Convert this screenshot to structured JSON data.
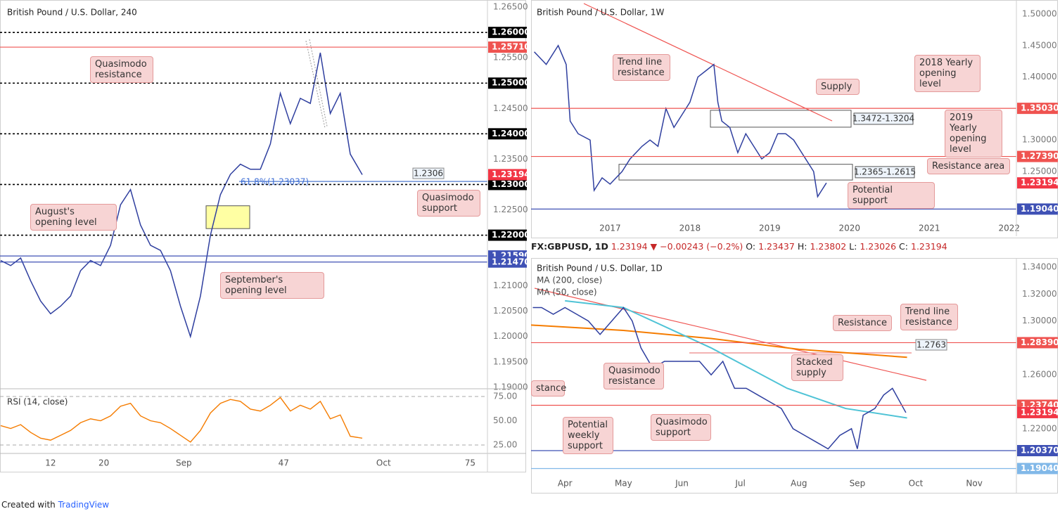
{
  "chart_data": [
    {
      "type": "line",
      "title": "British Pound / U.S. Dollar, 240",
      "color": "#2f3f9f",
      "x": [
        4.5,
        6,
        7.5,
        9,
        10.5,
        12,
        13.5,
        15,
        16.5,
        18,
        19.5,
        21,
        22.5,
        24,
        25.5,
        27,
        28.5,
        30,
        31.5,
        33,
        34.5,
        36,
        37.5,
        39,
        40.5,
        42,
        43.5,
        45,
        46.5,
        48,
        49.5,
        51,
        52.5,
        54,
        55.5,
        57,
        58.8
      ],
      "values": [
        1.215,
        1.214,
        1.2155,
        1.211,
        1.207,
        1.2045,
        1.206,
        1.208,
        1.213,
        1.215,
        1.214,
        1.218,
        1.226,
        1.229,
        1.222,
        1.218,
        1.217,
        1.213,
        1.206,
        1.2,
        1.208,
        1.22,
        1.228,
        1.232,
        1.234,
        1.233,
        1.233,
        1.238,
        1.248,
        1.242,
        1.247,
        1.246,
        1.256,
        1.244,
        1.248,
        1.236,
        1.23194
      ],
      "xlim": [
        4.4,
        77.6
      ],
      "xticks": [
        12,
        20,
        {
          "value": 32,
          "label": "Sep"
        },
        47,
        {
          "value": 62,
          "label": "Oct"
        },
        75
      ],
      "ylim": [
        1.1897,
        1.2664
      ],
      "yticks": [
        {
          "value": 1.265,
          "label": "1.26500"
        },
        {
          "value": 1.255,
          "label": "1.25500"
        },
        {
          "value": 1.245,
          "label": "1.24500"
        },
        {
          "value": 1.235,
          "label": "1.23500"
        },
        {
          "value": 1.225,
          "label": "1.22500"
        },
        {
          "value": 1.21,
          "label": "1.21000"
        },
        {
          "value": 1.205,
          "label": "1.20500"
        },
        {
          "value": 1.2,
          "label": "1.20000"
        },
        {
          "value": 1.195,
          "label": "1.19500"
        },
        {
          "value": 1.19,
          "label": "1.19000"
        }
      ],
      "levels": [
        {
          "value": 1.26,
          "label": "1.26000",
          "color": "#000000",
          "style": "dotted"
        },
        {
          "value": 1.2571,
          "label": "1.25710",
          "color": "#ef5350",
          "style": "solid"
        },
        {
          "value": 1.25,
          "label": "1.25000",
          "color": "#000000",
          "style": "dotted"
        },
        {
          "value": 1.24,
          "label": "1.24000",
          "color": "#000000",
          "style": "dotted"
        },
        {
          "value": 1.23,
          "label": "1.23000",
          "color": "#000000",
          "style": "dotted"
        },
        {
          "value": 1.22,
          "label": "1.22000",
          "color": "#000000",
          "style": "dotted"
        },
        {
          "value": 1.2159,
          "label": "1.21590",
          "color": "#3f51b5",
          "style": "solid"
        },
        {
          "value": 1.2147,
          "label": "1.21470",
          "color": "#3f51b5",
          "style": "solid"
        }
      ],
      "last_price": {
        "value": 1.23194,
        "label": "1.23194",
        "color": "#f23645"
      },
      "marker_levels": [
        {
          "value": 1.2306,
          "label": "1.2306",
          "color": "#6b8fd6"
        }
      ],
      "zones": [
        {
          "from": 1.2213,
          "to": 1.2258,
          "color": "#ffff99"
        }
      ],
      "fib_label": "61.8%(1.23037)",
      "annotations": [
        "Quasimodo resistance",
        "August's opening level",
        "September's opening level",
        "Quasimodo support"
      ],
      "rsi": {
        "title": "RSI (14, close)",
        "color": "#f57c00",
        "ylim": [
          16.3,
          83
        ],
        "yticks": [
          {
            "value": 75,
            "label": "75.00"
          },
          {
            "value": 50,
            "label": "50.00"
          },
          {
            "value": 25,
            "label": "25.00"
          }
        ],
        "values": [
          45,
          42,
          46,
          38,
          32,
          30,
          35,
          40,
          48,
          52,
          50,
          55,
          65,
          68,
          55,
          50,
          48,
          42,
          35,
          28,
          40,
          58,
          68,
          72,
          70,
          62,
          60,
          66,
          74,
          60,
          66,
          62,
          70,
          52,
          56,
          34,
          32
        ]
      }
    },
    {
      "type": "line",
      "title": "British Pound / U.S. Dollar, 1W",
      "color": "#2f3f9f",
      "x": [
        2016.05,
        2016.2,
        2016.35,
        2016.45,
        2016.5,
        2016.6,
        2016.75,
        2016.8,
        2016.9,
        2017.0,
        2017.15,
        2017.25,
        2017.4,
        2017.5,
        2017.6,
        2017.7,
        2017.8,
        2017.9,
        2018.0,
        2018.1,
        2018.2,
        2018.3,
        2018.35,
        2018.4,
        2018.5,
        2018.6,
        2018.7,
        2018.8,
        2018.9,
        2019.0,
        2019.1,
        2019.2,
        2019.3,
        2019.4,
        2019.5,
        2019.55,
        2019.6,
        2019.65,
        2019.71
      ],
      "values": [
        1.44,
        1.42,
        1.45,
        1.42,
        1.33,
        1.31,
        1.3,
        1.22,
        1.24,
        1.23,
        1.25,
        1.27,
        1.29,
        1.3,
        1.29,
        1.35,
        1.32,
        1.34,
        1.36,
        1.4,
        1.41,
        1.42,
        1.36,
        1.33,
        1.32,
        1.28,
        1.31,
        1.29,
        1.27,
        1.28,
        1.31,
        1.31,
        1.3,
        1.28,
        1.26,
        1.25,
        1.21,
        1.22,
        1.23194
      ],
      "xlim": [
        2016.01,
        2022.09
      ],
      "xticks": [
        2017,
        2018,
        2019,
        2020,
        2021,
        2022
      ],
      "ylim": [
        1.1741,
        1.5223
      ],
      "yticks": [
        {
          "value": 1.5,
          "label": "1.50000"
        },
        {
          "value": 1.45,
          "label": "1.45000"
        },
        {
          "value": 1.4,
          "label": "1.40000"
        },
        {
          "value": 1.3,
          "label": "1.30000"
        },
        {
          "value": 1.25,
          "label": "1.25000"
        }
      ],
      "levels": [
        {
          "value": 1.3503,
          "label": "1.35030",
          "color": "#ef5350",
          "style": "solid"
        },
        {
          "value": 1.2739,
          "label": "1.27390",
          "color": "#ef5350",
          "style": "solid"
        },
        {
          "value": 1.1904,
          "label": "1.19040",
          "color": "#3f51b5",
          "style": "solid"
        }
      ],
      "last_price": {
        "value": 1.23194,
        "label": "1.23194",
        "color": "#f23645"
      },
      "zones": [
        {
          "label": "1.3472-1.3204",
          "from": 1.3204,
          "to": 1.3472,
          "color": "#ffffff"
        },
        {
          "label": "1.2365-1.2615",
          "from": 1.2365,
          "to": 1.2615,
          "color": "#ffffff"
        }
      ],
      "annotations": [
        "Trend line resistance",
        "Supply",
        "2018 Yearly opening level",
        "2019 Yearly opening level",
        "Resistance area",
        "Potential support"
      ]
    },
    {
      "type": "line",
      "title": "British Pound / U.S. Dollar, 1D",
      "color": "#2f3f9f",
      "info": [
        "FX:GBPUSD, 1D",
        "1.23194",
        "▼",
        "−0.00243 (−0.2%)",
        "O:",
        "1.23437",
        "H:",
        "1.23802",
        "L:",
        "1.23026",
        "C:",
        "1.23194"
      ],
      "x": [
        3.45,
        3.6,
        3.8,
        4.0,
        4.2,
        4.4,
        4.6,
        4.8,
        5.0,
        5.15,
        5.3,
        5.5,
        5.7,
        5.9,
        6.1,
        6.3,
        6.5,
        6.7,
        6.9,
        7.1,
        7.3,
        7.5,
        7.7,
        7.9,
        8.1,
        8.3,
        8.5,
        8.7,
        8.9,
        9.0,
        9.1,
        9.3,
        9.45,
        9.6,
        9.83
      ],
      "values": [
        1.31,
        1.31,
        1.305,
        1.31,
        1.305,
        1.3,
        1.29,
        1.3,
        1.31,
        1.3,
        1.28,
        1.265,
        1.27,
        1.27,
        1.27,
        1.27,
        1.26,
        1.27,
        1.25,
        1.25,
        1.245,
        1.24,
        1.235,
        1.22,
        1.215,
        1.21,
        1.205,
        1.215,
        1.22,
        1.205,
        1.23,
        1.235,
        1.245,
        1.25,
        1.23194
      ],
      "ma": [
        {
          "name": "MA (200, close)",
          "color": "#f57c00",
          "x": [
            3.42,
            5,
            6.5,
            8,
            9.85
          ],
          "values": [
            1.297,
            1.293,
            1.287,
            1.279,
            1.273
          ]
        },
        {
          "name": "MA (50, close)",
          "color": "#4fc3d6",
          "x": [
            4,
            5,
            6.5,
            7.8,
            8.8,
            9.85
          ],
          "values": [
            1.315,
            1.31,
            1.28,
            1.25,
            1.235,
            1.228
          ]
        }
      ],
      "xlim": [
        3.42,
        11.72
      ],
      "xticks": [
        {
          "value": 4,
          "label": "Apr"
        },
        {
          "value": 5,
          "label": "May"
        },
        {
          "value": 6,
          "label": "Jun"
        },
        {
          "value": 7,
          "label": "Jul"
        },
        {
          "value": 8,
          "label": "Aug"
        },
        {
          "value": 9,
          "label": "Sep"
        },
        {
          "value": 10,
          "label": "Oct"
        },
        {
          "value": 11,
          "label": "Nov"
        }
      ],
      "ylim": [
        1.1849,
        1.3468
      ],
      "yticks": [
        {
          "value": 1.34,
          "label": "1.34000"
        },
        {
          "value": 1.32,
          "label": "1.32000"
        },
        {
          "value": 1.3,
          "label": "1.30000"
        },
        {
          "value": 1.26,
          "label": "1.26000"
        },
        {
          "value": 1.22,
          "label": "1.22000"
        }
      ],
      "levels": [
        {
          "value": 1.2839,
          "label": "1.28390",
          "color": "#ef5350",
          "style": "solid"
        },
        {
          "value": 1.2374,
          "label": "1.23740",
          "color": "#ef5350",
          "style": "solid"
        },
        {
          "value": 1.2037,
          "label": "1.20370",
          "color": "#3f51b5",
          "style": "solid"
        },
        {
          "value": 1.1904,
          "label": "1.19040",
          "color": "#81b8e8",
          "style": "solid"
        }
      ],
      "last_price": {
        "value": 1.23194,
        "label": "1.23194",
        "color": "#f23645"
      },
      "marker_levels": [
        {
          "value": 1.2763,
          "label": "1.2763",
          "color": "#ef9a9a"
        }
      ],
      "annotations": [
        "Resistance",
        "Trend line resistance",
        "Quasimodo resistance",
        "Stacked supply",
        "Quasimodo support",
        "Potential weekly support",
        "stance"
      ]
    }
  ],
  "footer": {
    "created": "Created with",
    "brand": "TradingView"
  }
}
